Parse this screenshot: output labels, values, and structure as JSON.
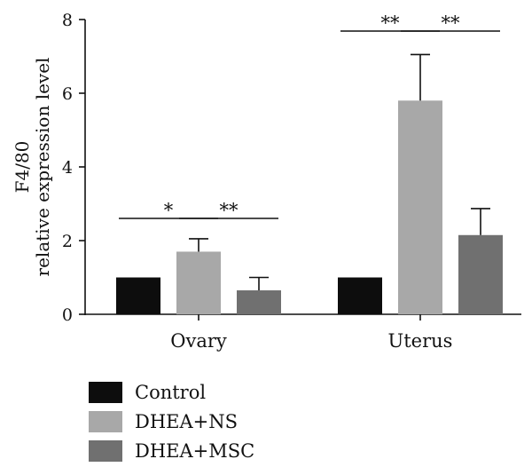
{
  "chart_data": {
    "type": "bar",
    "ylabel_line1": "F4/80",
    "ylabel_line2": "relative expression level",
    "ylim": [
      0,
      8
    ],
    "yticks": [
      "0",
      "2",
      "4",
      "6",
      "8"
    ],
    "categories": [
      "Ovary",
      "Uterus"
    ],
    "series": [
      {
        "name": "Control",
        "color": "#0d0d0d",
        "values": [
          1.0,
          1.0
        ],
        "errors": [
          0,
          0
        ]
      },
      {
        "name": "DHEA+NS",
        "color": "#a8a8a8",
        "values": [
          1.7,
          5.8
        ],
        "errors": [
          0.35,
          1.25
        ]
      },
      {
        "name": "DHEA+MSC",
        "color": "#707070",
        "values": [
          0.65,
          2.15
        ],
        "errors": [
          0.35,
          0.72
        ]
      }
    ],
    "significance": [
      {
        "category": "Ovary",
        "from": "Control",
        "to": "DHEA+NS",
        "label": "*"
      },
      {
        "category": "Ovary",
        "from": "DHEA+NS",
        "to": "DHEA+MSC",
        "label": "**"
      },
      {
        "category": "Uterus",
        "from": "Control",
        "to": "DHEA+NS",
        "label": "**"
      },
      {
        "category": "Uterus",
        "from": "DHEA+NS",
        "to": "DHEA+MSC",
        "label": "**"
      }
    ],
    "legend_position": "bottom-left",
    "grid": false
  }
}
